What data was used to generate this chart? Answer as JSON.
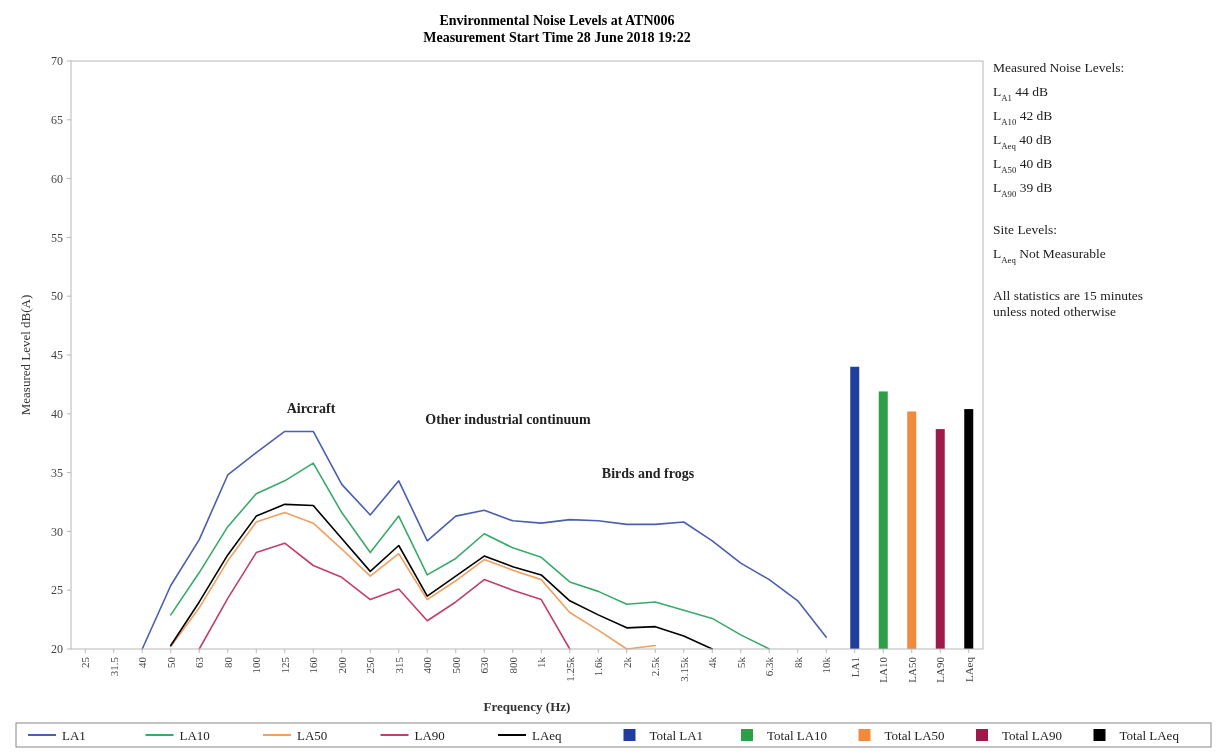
{
  "chart_data": {
    "type": "line",
    "title": "Environmental Noise Levels at ATN006",
    "subtitle": "Measurement Start Time 28 June 2018 19:22",
    "xlabel": "Frequency (Hz)",
    "ylabel": "Measured Level dB(A)",
    "categories": [
      "25",
      "31.5",
      "40",
      "50",
      "63",
      "80",
      "100",
      "125",
      "160",
      "200",
      "250",
      "315",
      "400",
      "500",
      "630",
      "800",
      "1k",
      "1.25k",
      "1.6k",
      "2k",
      "2.5k",
      "3.15k",
      "4k",
      "5k",
      "6.3k",
      "8k",
      "10k",
      "LA1",
      "LA10",
      "LA50",
      "LA90",
      "LAeq"
    ],
    "ylim": [
      20,
      70
    ],
    "yticks": [
      20,
      25,
      30,
      35,
      40,
      45,
      50,
      55,
      60,
      65,
      70
    ],
    "grid": false,
    "legend": "bottom",
    "marker": "none",
    "line_style": "solid",
    "series": [
      {
        "name": "LA1",
        "color": "#4a5fb0",
        "values": [
          null,
          null,
          20,
          25.4,
          29.3,
          34.8,
          36.7,
          38.5,
          38.5,
          34.0,
          31.4,
          34.3,
          29.2,
          31.3,
          31.8,
          30.9,
          30.7,
          31.0,
          30.9,
          30.6,
          30.6,
          30.8,
          29.2,
          27.3,
          25.9,
          24.1,
          21.0,
          null,
          null,
          null,
          null,
          null
        ]
      },
      {
        "name": "LA10",
        "color": "#3aaa6a",
        "values": [
          null,
          null,
          null,
          22.9,
          26.5,
          30.4,
          33.2,
          34.3,
          35.8,
          31.6,
          28.2,
          31.3,
          26.3,
          27.7,
          29.8,
          28.6,
          27.8,
          25.7,
          24.9,
          23.8,
          24.0,
          23.3,
          22.6,
          21.2,
          20.0,
          null,
          null,
          null,
          null,
          null,
          null,
          null
        ]
      },
      {
        "name": "LA50",
        "color": "#f0a060",
        "values": [
          null,
          null,
          null,
          20.2,
          23.5,
          27.5,
          30.8,
          31.6,
          30.7,
          28.5,
          26.2,
          28.1,
          24.2,
          25.8,
          27.6,
          26.7,
          25.9,
          23.1,
          21.6,
          20.0,
          20.3,
          null,
          null,
          null,
          null,
          null,
          null,
          null,
          null,
          null,
          null,
          null
        ]
      },
      {
        "name": "LA90",
        "color": "#c0406a",
        "values": [
          null,
          null,
          null,
          null,
          20.0,
          24.3,
          28.2,
          29.0,
          27.1,
          26.1,
          24.2,
          25.1,
          22.4,
          24.0,
          25.9,
          25.0,
          24.2,
          20.0,
          null,
          null,
          null,
          null,
          null,
          null,
          null,
          null,
          null,
          null,
          null,
          null,
          null,
          null
        ]
      },
      {
        "name": "LAeq",
        "color": "#000000",
        "values": [
          null,
          null,
          null,
          20.3,
          24.0,
          28.0,
          31.3,
          32.3,
          32.2,
          29.4,
          26.6,
          28.8,
          24.5,
          26.2,
          27.9,
          27.0,
          26.3,
          24.1,
          22.9,
          21.8,
          21.9,
          21.1,
          20.0,
          null,
          null,
          null,
          null,
          null,
          null,
          null,
          null,
          null
        ]
      },
      {
        "name": "Total LA1",
        "type": "bar",
        "color": "#1f3f9f",
        "values": [
          null,
          null,
          null,
          null,
          null,
          null,
          null,
          null,
          null,
          null,
          null,
          null,
          null,
          null,
          null,
          null,
          null,
          null,
          null,
          null,
          null,
          null,
          null,
          null,
          null,
          null,
          null,
          44.0,
          null,
          null,
          null,
          null
        ]
      },
      {
        "name": "Total LA10",
        "type": "bar",
        "color": "#2e9e48",
        "values": [
          null,
          null,
          null,
          null,
          null,
          null,
          null,
          null,
          null,
          null,
          null,
          null,
          null,
          null,
          null,
          null,
          null,
          null,
          null,
          null,
          null,
          null,
          null,
          null,
          null,
          null,
          null,
          null,
          41.9,
          null,
          null,
          null
        ]
      },
      {
        "name": "Total LA50",
        "type": "bar",
        "color": "#f08a3c",
        "values": [
          null,
          null,
          null,
          null,
          null,
          null,
          null,
          null,
          null,
          null,
          null,
          null,
          null,
          null,
          null,
          null,
          null,
          null,
          null,
          null,
          null,
          null,
          null,
          null,
          null,
          null,
          null,
          null,
          null,
          40.2,
          null,
          null
        ]
      },
      {
        "name": "Total LA90",
        "type": "bar",
        "color": "#9e1a4a",
        "values": [
          null,
          null,
          null,
          null,
          null,
          null,
          null,
          null,
          null,
          null,
          null,
          null,
          null,
          null,
          null,
          null,
          null,
          null,
          null,
          null,
          null,
          null,
          null,
          null,
          null,
          null,
          null,
          null,
          null,
          null,
          38.7,
          null
        ]
      },
      {
        "name": "Total LAeq",
        "type": "bar",
        "color": "#000000",
        "values": [
          null,
          null,
          null,
          null,
          null,
          null,
          null,
          null,
          null,
          null,
          null,
          null,
          null,
          null,
          null,
          null,
          null,
          null,
          null,
          null,
          null,
          null,
          null,
          null,
          null,
          null,
          null,
          null,
          null,
          null,
          null,
          40.4
        ]
      }
    ],
    "annotations": [
      "Aircraft",
      "Other industrial continuum",
      "Birds and frogs",
      "Measured Noise Levels:",
      "L$_{A1}$ 44 dB",
      "L$_{A10}$ 42 dB",
      "L$_{Aeq}$ 40 dB",
      "L$_{A50}$ 40 dB",
      "L$_{A90}$ 39 dB",
      "Site Levels:",
      "L$_{Aeq}$ Not Measurable",
      "All statistics are 15 minutes unless noted otherwise"
    ]
  }
}
